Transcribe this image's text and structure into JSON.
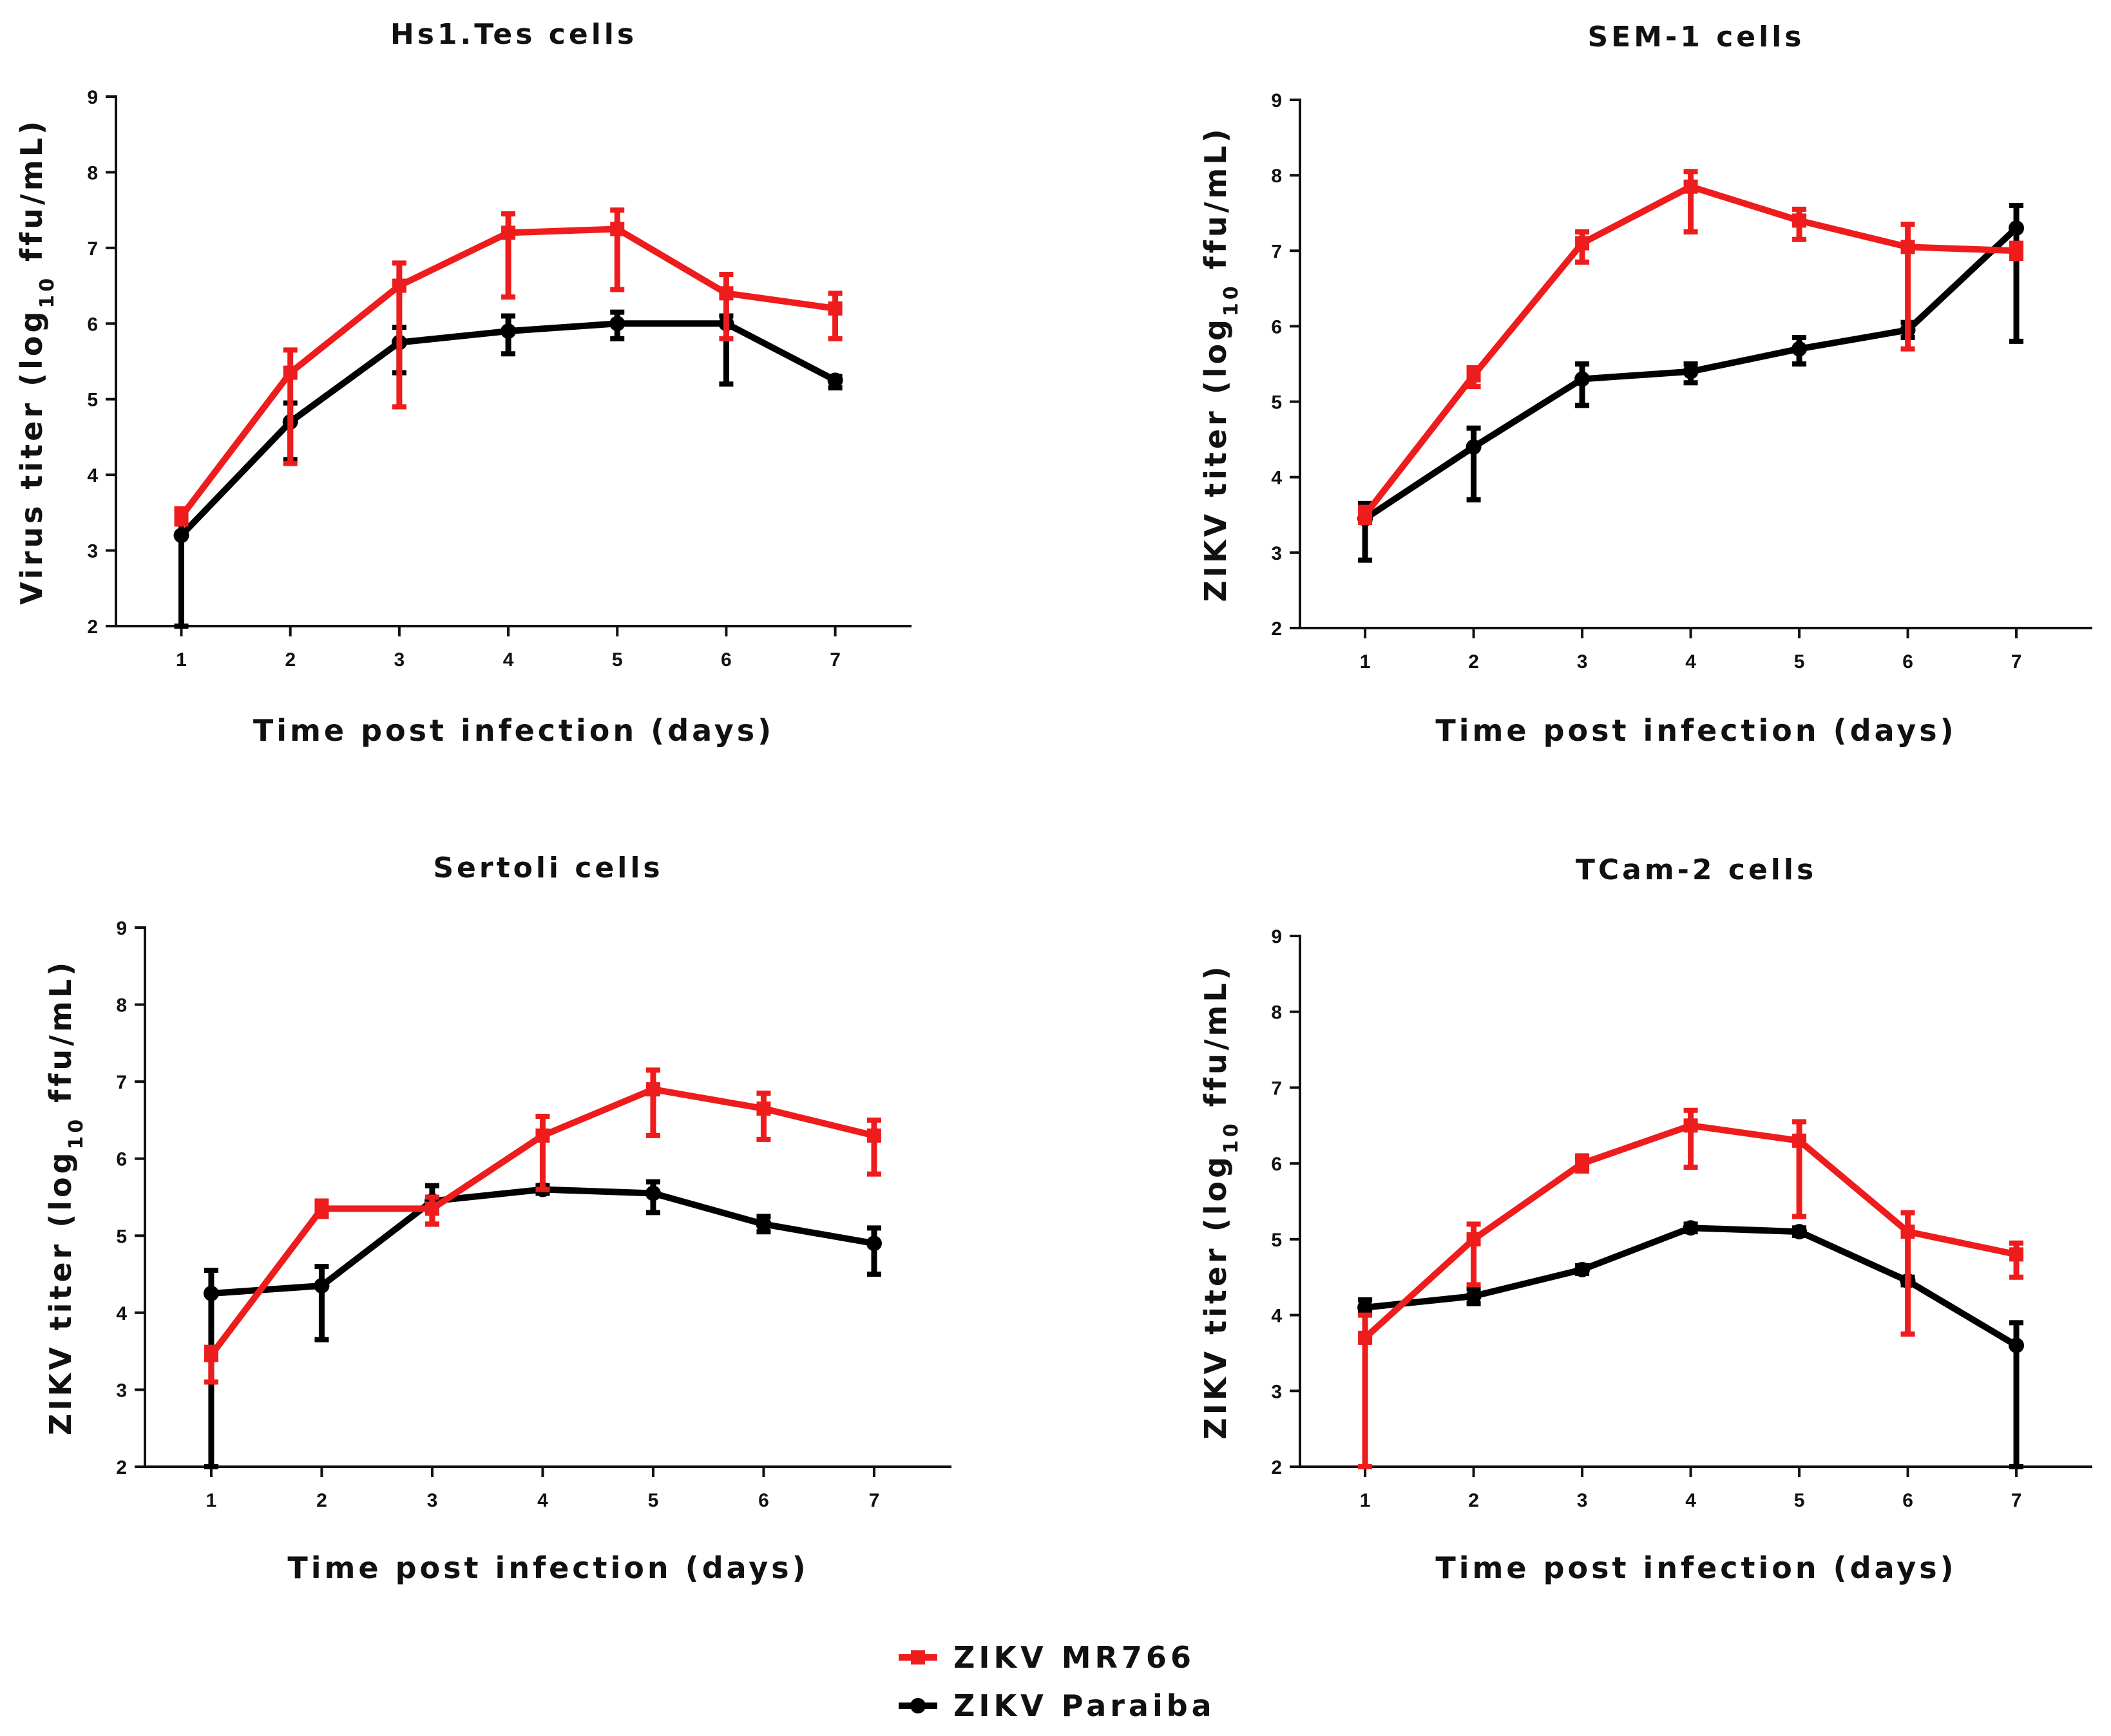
{
  "chart_data": [
    {
      "type": "line",
      "title": "Hs1.Tes cells",
      "xlabel": "Time post infection (days)",
      "ylabel_main": "Virus titer (log",
      "ylabel_sub": "10",
      "ylabel_tail": " ffu/mL)",
      "x": [
        1,
        2,
        3,
        4,
        5,
        6,
        7
      ],
      "xlim": [
        0.4,
        7.7
      ],
      "ylim": [
        2,
        9
      ],
      "yticks": [
        2,
        3,
        4,
        5,
        6,
        7,
        8,
        9
      ],
      "series": [
        {
          "name": "ZIKV MR766",
          "color": "#ee1c1c",
          "marker": "square",
          "values": [
            3.45,
            5.35,
            6.5,
            7.2,
            7.25,
            6.4,
            6.2
          ],
          "err_low": [
            0.1,
            1.2,
            1.6,
            0.85,
            0.8,
            0.6,
            0.4
          ],
          "err_high": [
            0.1,
            0.3,
            0.3,
            0.25,
            0.25,
            0.25,
            0.2
          ]
        },
        {
          "name": "ZIKV Paraiba",
          "color": "#000000",
          "marker": "circle",
          "values": [
            3.2,
            4.7,
            5.75,
            5.9,
            6.0,
            6.0,
            5.25
          ],
          "err_low": [
            1.2,
            0.5,
            0.4,
            0.3,
            0.2,
            0.8,
            0.1
          ],
          "err_high": [
            0.3,
            0.25,
            0.2,
            0.2,
            0.15,
            0.1,
            0.05
          ]
        }
      ]
    },
    {
      "type": "line",
      "title": "SEM-1 cells",
      "xlabel": "Time post infection (days)",
      "ylabel_main": "ZIKV titer (log",
      "ylabel_sub": "10",
      "ylabel_tail": " ffu/mL)",
      "x": [
        1,
        2,
        3,
        4,
        5,
        6,
        7
      ],
      "xlim": [
        0.4,
        7.7
      ],
      "ylim": [
        2,
        9
      ],
      "yticks": [
        2,
        3,
        4,
        5,
        6,
        7,
        8,
        9
      ],
      "series": [
        {
          "name": "ZIKV MR766",
          "color": "#ee1c1c",
          "marker": "square",
          "values": [
            3.5,
            5.35,
            7.1,
            7.85,
            7.4,
            7.05,
            7.0
          ],
          "err_low": [
            0.1,
            0.15,
            0.25,
            0.6,
            0.25,
            1.35,
            0.1
          ],
          "err_high": [
            0.1,
            0.1,
            0.15,
            0.2,
            0.15,
            0.3,
            0.1
          ]
        },
        {
          "name": "ZIKV Paraiba",
          "color": "#000000",
          "marker": "circle",
          "values": [
            3.45,
            4.4,
            5.3,
            5.4,
            5.7,
            5.95,
            7.3
          ],
          "err_low": [
            0.55,
            0.7,
            0.35,
            0.15,
            0.2,
            0.1,
            1.5
          ],
          "err_high": [
            0.2,
            0.25,
            0.2,
            0.1,
            0.15,
            0.1,
            0.3
          ]
        }
      ]
    },
    {
      "type": "line",
      "title": "Sertoli cells",
      "xlabel": "Time post infection (days)",
      "ylabel_main": "ZIKV titer (log",
      "ylabel_sub": "10",
      "ylabel_tail": " ffu/mL)",
      "x": [
        1,
        2,
        3,
        4,
        5,
        6,
        7
      ],
      "xlim": [
        0.4,
        7.7
      ],
      "ylim": [
        2,
        9
      ],
      "yticks": [
        2,
        3,
        4,
        5,
        6,
        7,
        8,
        9
      ],
      "series": [
        {
          "name": "ZIKV MR766",
          "color": "#ee1c1c",
          "marker": "square",
          "values": [
            3.45,
            5.35,
            5.35,
            6.3,
            6.9,
            6.65,
            6.3
          ],
          "err_low": [
            0.35,
            0.1,
            0.2,
            0.7,
            0.6,
            0.4,
            0.5
          ],
          "err_high": [
            0.1,
            0.1,
            0.15,
            0.25,
            0.25,
            0.2,
            0.2
          ]
        },
        {
          "name": "ZIKV Paraiba",
          "color": "#000000",
          "marker": "circle",
          "values": [
            4.25,
            4.35,
            5.45,
            5.6,
            5.55,
            5.15,
            4.9
          ],
          "err_low": [
            2.25,
            0.7,
            0.3,
            0.05,
            0.25,
            0.1,
            0.4
          ],
          "err_high": [
            0.3,
            0.25,
            0.2,
            0.05,
            0.15,
            0.1,
            0.2
          ]
        }
      ]
    },
    {
      "type": "line",
      "title": "TCam-2 cells",
      "xlabel": "Time post infection (days)",
      "ylabel_main": "ZIKV titer (log",
      "ylabel_sub": "10",
      "ylabel_tail": " ffu/mL)",
      "x": [
        1,
        2,
        3,
        4,
        5,
        6,
        7
      ],
      "xlim": [
        0.4,
        7.7
      ],
      "ylim": [
        2,
        9
      ],
      "yticks": [
        2,
        3,
        4,
        5,
        6,
        7,
        8,
        9
      ],
      "series": [
        {
          "name": "ZIKV MR766",
          "color": "#ee1c1c",
          "marker": "square",
          "values": [
            3.7,
            5.0,
            6.0,
            6.5,
            6.3,
            5.1,
            4.8
          ],
          "err_low": [
            1.7,
            0.6,
            0.1,
            0.55,
            1.0,
            1.35,
            0.3
          ],
          "err_high": [
            0.3,
            0.2,
            0.1,
            0.2,
            0.25,
            0.25,
            0.15
          ]
        },
        {
          "name": "ZIKV Paraiba",
          "color": "#000000",
          "marker": "circle",
          "values": [
            4.1,
            4.25,
            4.6,
            5.15,
            5.1,
            4.45,
            3.6
          ],
          "err_low": [
            0.05,
            0.1,
            0.05,
            0.05,
            0.05,
            0.05,
            1.6
          ],
          "err_high": [
            0.1,
            0.1,
            0.05,
            0.05,
            0.05,
            0.05,
            0.3
          ]
        }
      ]
    }
  ],
  "legend": {
    "items": [
      {
        "label": "ZIKV MR766",
        "color": "#ee1c1c",
        "marker": "square"
      },
      {
        "label": "ZIKV Paraiba",
        "color": "#000000",
        "marker": "circle"
      }
    ]
  }
}
